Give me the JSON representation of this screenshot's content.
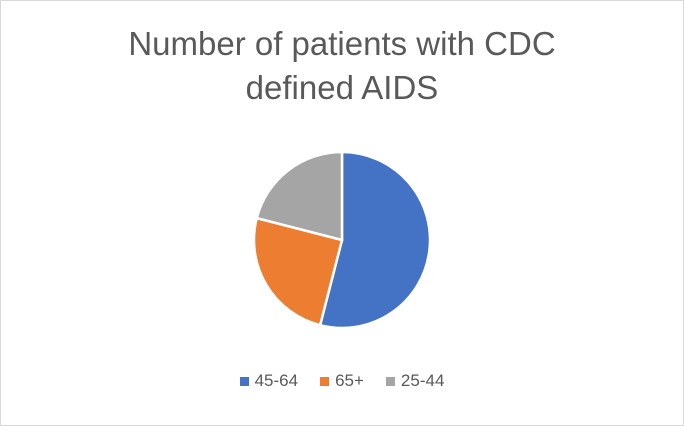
{
  "chart_data": {
    "type": "pie",
    "title": "Number of patients with CDC defined AIDS",
    "categories": [
      "45-64",
      "65+",
      "25-44"
    ],
    "values": [
      54,
      25,
      21
    ],
    "colors": [
      "#4472c4",
      "#ed7d31",
      "#a5a5a5"
    ],
    "legend": "bottom"
  }
}
